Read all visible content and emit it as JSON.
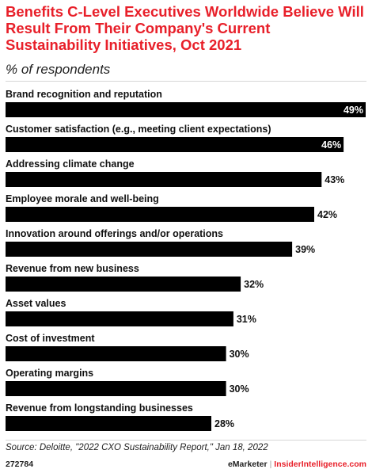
{
  "title": "Benefits C-Level Executives Worldwide Believe Will Result From Their Company's Current Sustainability Initiatives, Oct 2021",
  "subtitle": "% of respondents",
  "source": "Source: Deloitte, \"2022 CXO Sustainability Report,\" Jan 18, 2022",
  "footer": {
    "id": "272784",
    "brand": "eMarketer",
    "separator": "|",
    "site": "InsiderIntelligence.com"
  },
  "colors": {
    "title": "#e8202a",
    "bar": "#000000",
    "text": "#111111"
  },
  "chart_data": {
    "type": "bar",
    "orientation": "horizontal",
    "categories": [
      "Brand recognition and reputation",
      "Customer satisfaction (e.g., meeting client expectations)",
      "Addressing climate change",
      "Employee morale and well-being",
      "Innovation around offerings and/or operations",
      "Revenue from new business",
      "Asset values",
      "Cost of investment",
      "Operating margins",
      "Revenue from longstanding businesses"
    ],
    "values": [
      49,
      46,
      43,
      42,
      39,
      32,
      31,
      30,
      30,
      28
    ],
    "value_labels": [
      "49%",
      "46%",
      "43%",
      "42%",
      "39%",
      "32%",
      "31%",
      "30%",
      "30%",
      "28%"
    ],
    "xlim": [
      0,
      49
    ],
    "grid": false,
    "legend": "none"
  }
}
